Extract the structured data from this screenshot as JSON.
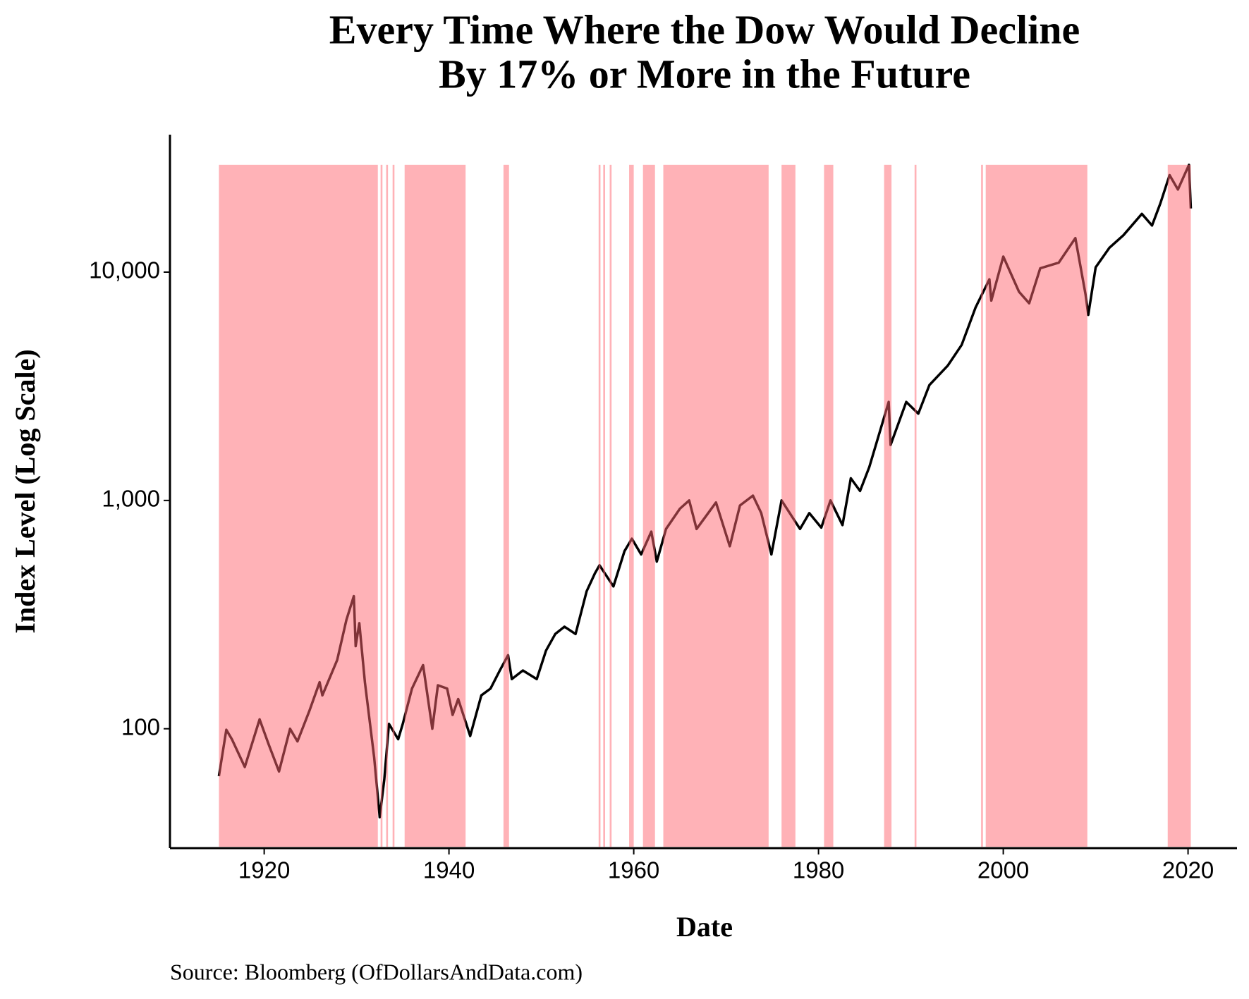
{
  "chart_data": {
    "type": "line",
    "title": [
      "Every Time Where the Dow Would Decline",
      "By 17% or More in the Future"
    ],
    "x_label": "Date",
    "y_label": "Index Level (Log Scale)",
    "source": "Source:  Bloomberg (OfDollarsAndData.com)",
    "log_scale": true,
    "grid": false,
    "color": "#000000",
    "shade_color": "#ff6670",
    "xlim": [
      1909.8,
      2025.3
    ],
    "xticks": [
      1920,
      1940,
      1960,
      1980,
      2000,
      2020
    ],
    "ylim": [
      30,
      40000
    ],
    "yticks": [
      100,
      {
        "value": 1000,
        "label": "1,000"
      },
      {
        "value": 10000,
        "label": "10,000"
      }
    ],
    "shaded_periods": [
      [
        1915.1,
        1932.3
      ],
      [
        1932.6,
        1932.8
      ],
      [
        1933.2,
        1933.4
      ],
      [
        1933.9,
        1934.1
      ],
      [
        1935.2,
        1941.8
      ],
      [
        1945.9,
        1946.5
      ],
      [
        1956.2,
        1956.4
      ],
      [
        1956.7,
        1956.9
      ],
      [
        1957.4,
        1957.6
      ],
      [
        1959.5,
        1960.0
      ],
      [
        1961.0,
        1962.3
      ],
      [
        1963.2,
        1974.6
      ],
      [
        1976.0,
        1977.5
      ],
      [
        1980.6,
        1981.6
      ],
      [
        1987.1,
        1987.9
      ],
      [
        1990.4,
        1990.6
      ],
      [
        1997.6,
        1997.8
      ],
      [
        1998.1,
        2009.1
      ],
      [
        2017.8,
        2020.3
      ]
    ],
    "x": [
      1915.1,
      1915.9,
      1916.5,
      1917.9,
      1919.5,
      1920.5,
      1921.6,
      1922.8,
      1923.6,
      1924.9,
      1926.0,
      1926.3,
      1927.9,
      1928.9,
      1929.7,
      1929.9,
      1930.3,
      1930.9,
      1931.9,
      1932.5,
      1933.0,
      1933.5,
      1934.5,
      1935.0,
      1936.0,
      1937.2,
      1938.2,
      1938.8,
      1939.8,
      1940.4,
      1941.0,
      1942.3,
      1943.5,
      1944.5,
      1945.5,
      1946.4,
      1946.8,
      1948.0,
      1949.5,
      1950.5,
      1951.5,
      1952.5,
      1953.7,
      1954.9,
      1955.8,
      1956.3,
      1957.8,
      1959.0,
      1959.8,
      1960.8,
      1961.9,
      1962.5,
      1963.5,
      1965.0,
      1966.0,
      1966.8,
      1968.9,
      1970.4,
      1971.5,
      1972.9,
      1973.8,
      1974.9,
      1976.0,
      1978.0,
      1979.0,
      1980.3,
      1981.3,
      1982.6,
      1983.5,
      1984.5,
      1985.5,
      1987.6,
      1987.8,
      1989.5,
      1990.8,
      1992.0,
      1994.0,
      1995.5,
      1997.0,
      1998.5,
      1998.7,
      2000.0,
      2001.7,
      2002.8,
      2004.0,
      2006.0,
      2007.8,
      2008.9,
      2009.2,
      2010.0,
      2011.5,
      2013.0,
      2015.0,
      2016.1,
      2017.0,
      2018.0,
      2018.9,
      2020.1,
      2020.3
    ],
    "values": [
      62,
      99,
      90,
      68,
      110,
      85,
      65,
      100,
      88,
      120,
      160,
      140,
      200,
      300,
      381,
      230,
      290,
      160,
      75,
      41,
      60,
      105,
      90,
      105,
      150,
      190,
      100,
      155,
      150,
      115,
      135,
      93,
      140,
      150,
      180,
      210,
      165,
      180,
      165,
      220,
      260,
      280,
      260,
      400,
      480,
      520,
      420,
      600,
      680,
      580,
      730,
      540,
      750,
      920,
      1000,
      750,
      980,
      630,
      950,
      1050,
      880,
      580,
      1000,
      750,
      880,
      760,
      1000,
      780,
      1250,
      1100,
      1400,
      2700,
      1750,
      2700,
      2400,
      3200,
      3900,
      4800,
      7000,
      9300,
      7500,
      11700,
      8200,
      7300,
      10400,
      11000,
      14100,
      8000,
      6500,
      10500,
      12800,
      14500,
      18000,
      16000,
      20000,
      26600,
      23000,
      29500,
      19000
    ]
  }
}
